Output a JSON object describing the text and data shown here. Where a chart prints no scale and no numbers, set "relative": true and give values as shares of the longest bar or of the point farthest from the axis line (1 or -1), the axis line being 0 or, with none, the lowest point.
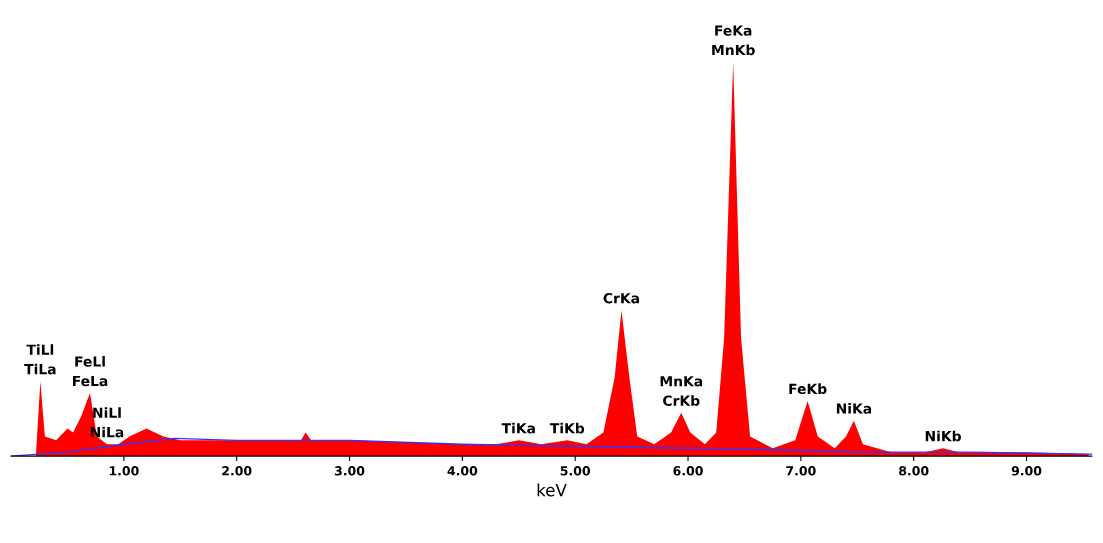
{
  "chart_data": {
    "type": "area",
    "relative": true,
    "xlabel": "keV",
    "xlim": [
      0,
      9.58
    ],
    "xticks": [
      {
        "value": 1,
        "label": "1.00"
      },
      {
        "value": 2,
        "label": "2.00"
      },
      {
        "value": 3,
        "label": "3.00"
      },
      {
        "value": 4,
        "label": "4.00"
      },
      {
        "value": 5,
        "label": "5.00"
      },
      {
        "value": 6,
        "label": "6.00"
      },
      {
        "value": 7,
        "label": "7.00"
      },
      {
        "value": 8,
        "label": "8.00"
      },
      {
        "value": 9,
        "label": "9.00"
      }
    ],
    "grid": false,
    "series": [
      {
        "color": "#ff0000",
        "x": [
          0.22,
          0.26,
          0.3,
          0.4,
          0.5,
          0.55,
          0.62,
          0.7,
          0.76,
          0.85,
          0.95,
          1.05,
          1.2,
          1.35,
          1.5,
          1.7,
          2.0,
          2.3,
          2.57,
          2.61,
          2.66,
          3.0,
          3.5,
          4.0,
          4.3,
          4.5,
          4.7,
          4.93,
          5.1,
          5.25,
          5.35,
          5.41,
          5.48,
          5.55,
          5.7,
          5.85,
          5.94,
          6.02,
          6.15,
          6.25,
          6.32,
          6.4,
          6.47,
          6.55,
          6.75,
          6.95,
          7.06,
          7.15,
          7.3,
          7.4,
          7.47,
          7.55,
          7.8,
          8.1,
          8.26,
          8.4,
          9.0,
          9.55
        ],
        "values": [
          0.0,
          0.19,
          0.05,
          0.04,
          0.07,
          0.06,
          0.1,
          0.16,
          0.05,
          0.03,
          0.03,
          0.05,
          0.07,
          0.05,
          0.04,
          0.04,
          0.04,
          0.04,
          0.04,
          0.06,
          0.04,
          0.04,
          0.035,
          0.03,
          0.03,
          0.04,
          0.03,
          0.04,
          0.03,
          0.06,
          0.2,
          0.37,
          0.2,
          0.05,
          0.03,
          0.06,
          0.11,
          0.06,
          0.03,
          0.06,
          0.3,
          1.0,
          0.3,
          0.05,
          0.02,
          0.04,
          0.14,
          0.05,
          0.02,
          0.05,
          0.09,
          0.03,
          0.01,
          0.01,
          0.02,
          0.01,
          0.01,
          0.005
        ]
      },
      {
        "type": "line",
        "color": "#3333ff",
        "x": [
          0.0,
          0.5,
          1.0,
          1.45,
          2.0,
          3.0,
          4.0,
          5.0,
          6.0,
          7.0,
          7.5,
          8.5,
          9.58
        ],
        "values": [
          0.0,
          0.01,
          0.03,
          0.045,
          0.04,
          0.04,
          0.03,
          0.025,
          0.02,
          0.015,
          0.01,
          0.01,
          0.005
        ]
      }
    ],
    "annotations": [
      {
        "text": "TiLl",
        "x": 0.26,
        "y": 0.19
      },
      {
        "text": "TiLa",
        "x": 0.26,
        "y": 0.19
      },
      {
        "text": "NiLl",
        "x": 0.85,
        "y": 0.03
      },
      {
        "text": "NiLa",
        "x": 0.85,
        "y": 0.03
      },
      {
        "text": "FeLl",
        "x": 0.7,
        "y": 0.16
      },
      {
        "text": "FeLa",
        "x": 0.7,
        "y": 0.16
      },
      {
        "text": "TiKa",
        "x": 4.5,
        "y": 0.04
      },
      {
        "text": "TiKb",
        "x": 4.93,
        "y": 0.04
      },
      {
        "text": "CrKa",
        "x": 5.41,
        "y": 0.37
      },
      {
        "text": "MnKa",
        "x": 5.94,
        "y": 0.11
      },
      {
        "text": "CrKb",
        "x": 5.94,
        "y": 0.11
      },
      {
        "text": "FeKa",
        "x": 6.4,
        "y": 1.0
      },
      {
        "text": "MnKb",
        "x": 6.4,
        "y": 1.0
      },
      {
        "text": "FeKb",
        "x": 7.06,
        "y": 0.14
      },
      {
        "text": "NiKa",
        "x": 7.47,
        "y": 0.09
      },
      {
        "text": "NiKb",
        "x": 8.26,
        "y": 0.02
      }
    ]
  }
}
